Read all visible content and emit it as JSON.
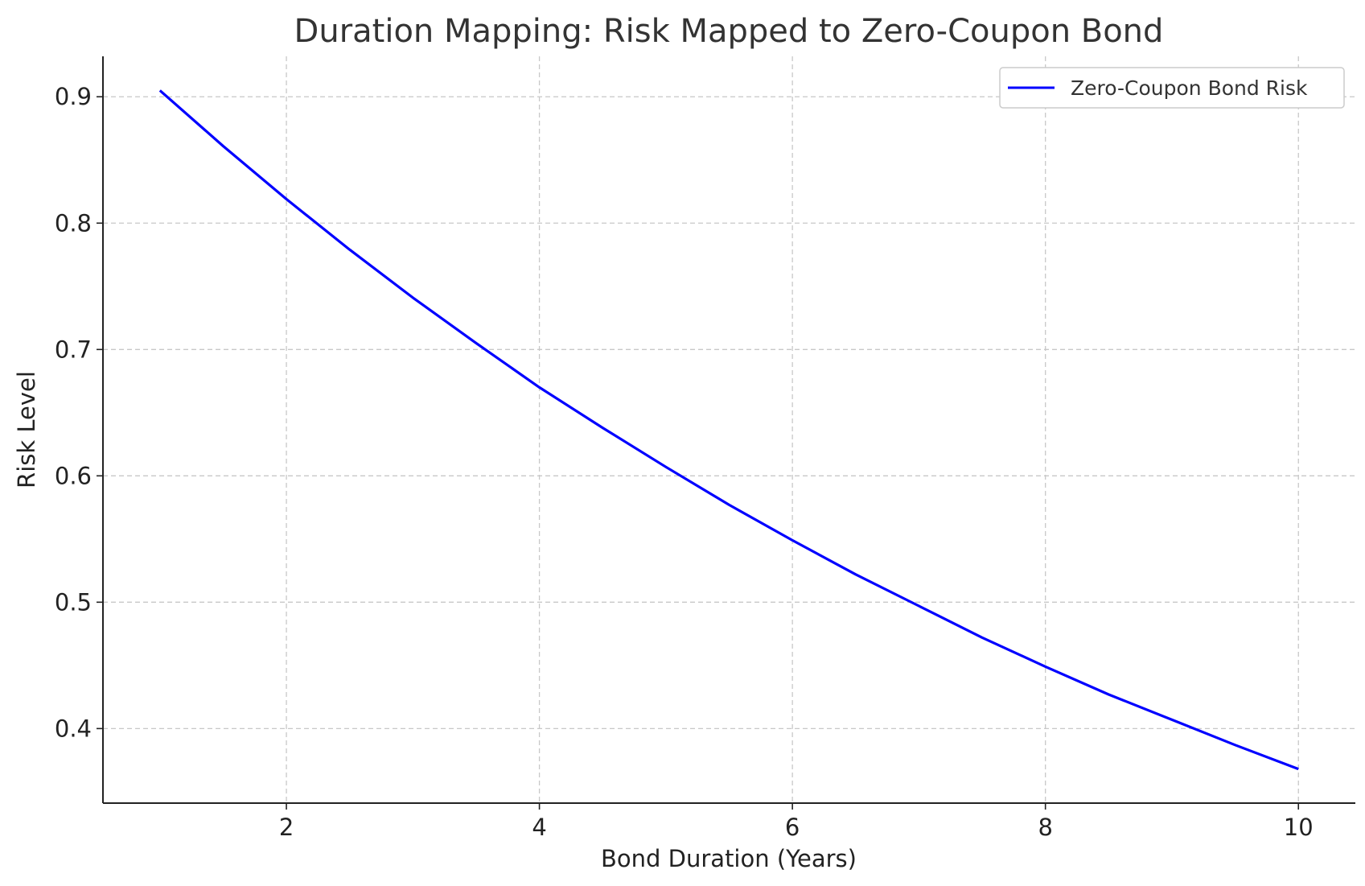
{
  "chart_data": {
    "type": "line",
    "title": "Duration Mapping: Risk Mapped to Zero-Coupon Bond",
    "xlabel": "Bond Duration (Years)",
    "ylabel": "Risk Level",
    "xlim": [
      0.55,
      10.45
    ],
    "ylim": [
      0.341,
      0.932
    ],
    "xticks": [
      2,
      4,
      6,
      8,
      10
    ],
    "xtick_labels": [
      "2",
      "4",
      "6",
      "8",
      "10"
    ],
    "yticks": [
      0.4,
      0.5,
      0.6,
      0.7,
      0.8,
      0.9
    ],
    "ytick_labels": [
      "0.4",
      "0.5",
      "0.6",
      "0.7",
      "0.8",
      "0.9"
    ],
    "grid": true,
    "legend_position": "top-right",
    "series": [
      {
        "name": "Zero-Coupon Bond Risk",
        "color": "#0000ff",
        "x": [
          1,
          1.5,
          2,
          2.5,
          3,
          3.5,
          4,
          4.5,
          5,
          5.5,
          6,
          6.5,
          7,
          7.5,
          8,
          8.5,
          9,
          9.5,
          10
        ],
        "y": [
          0.905,
          0.861,
          0.819,
          0.779,
          0.741,
          0.705,
          0.67,
          0.638,
          0.607,
          0.577,
          0.549,
          0.522,
          0.497,
          0.472,
          0.449,
          0.427,
          0.407,
          0.387,
          0.368
        ]
      }
    ]
  }
}
